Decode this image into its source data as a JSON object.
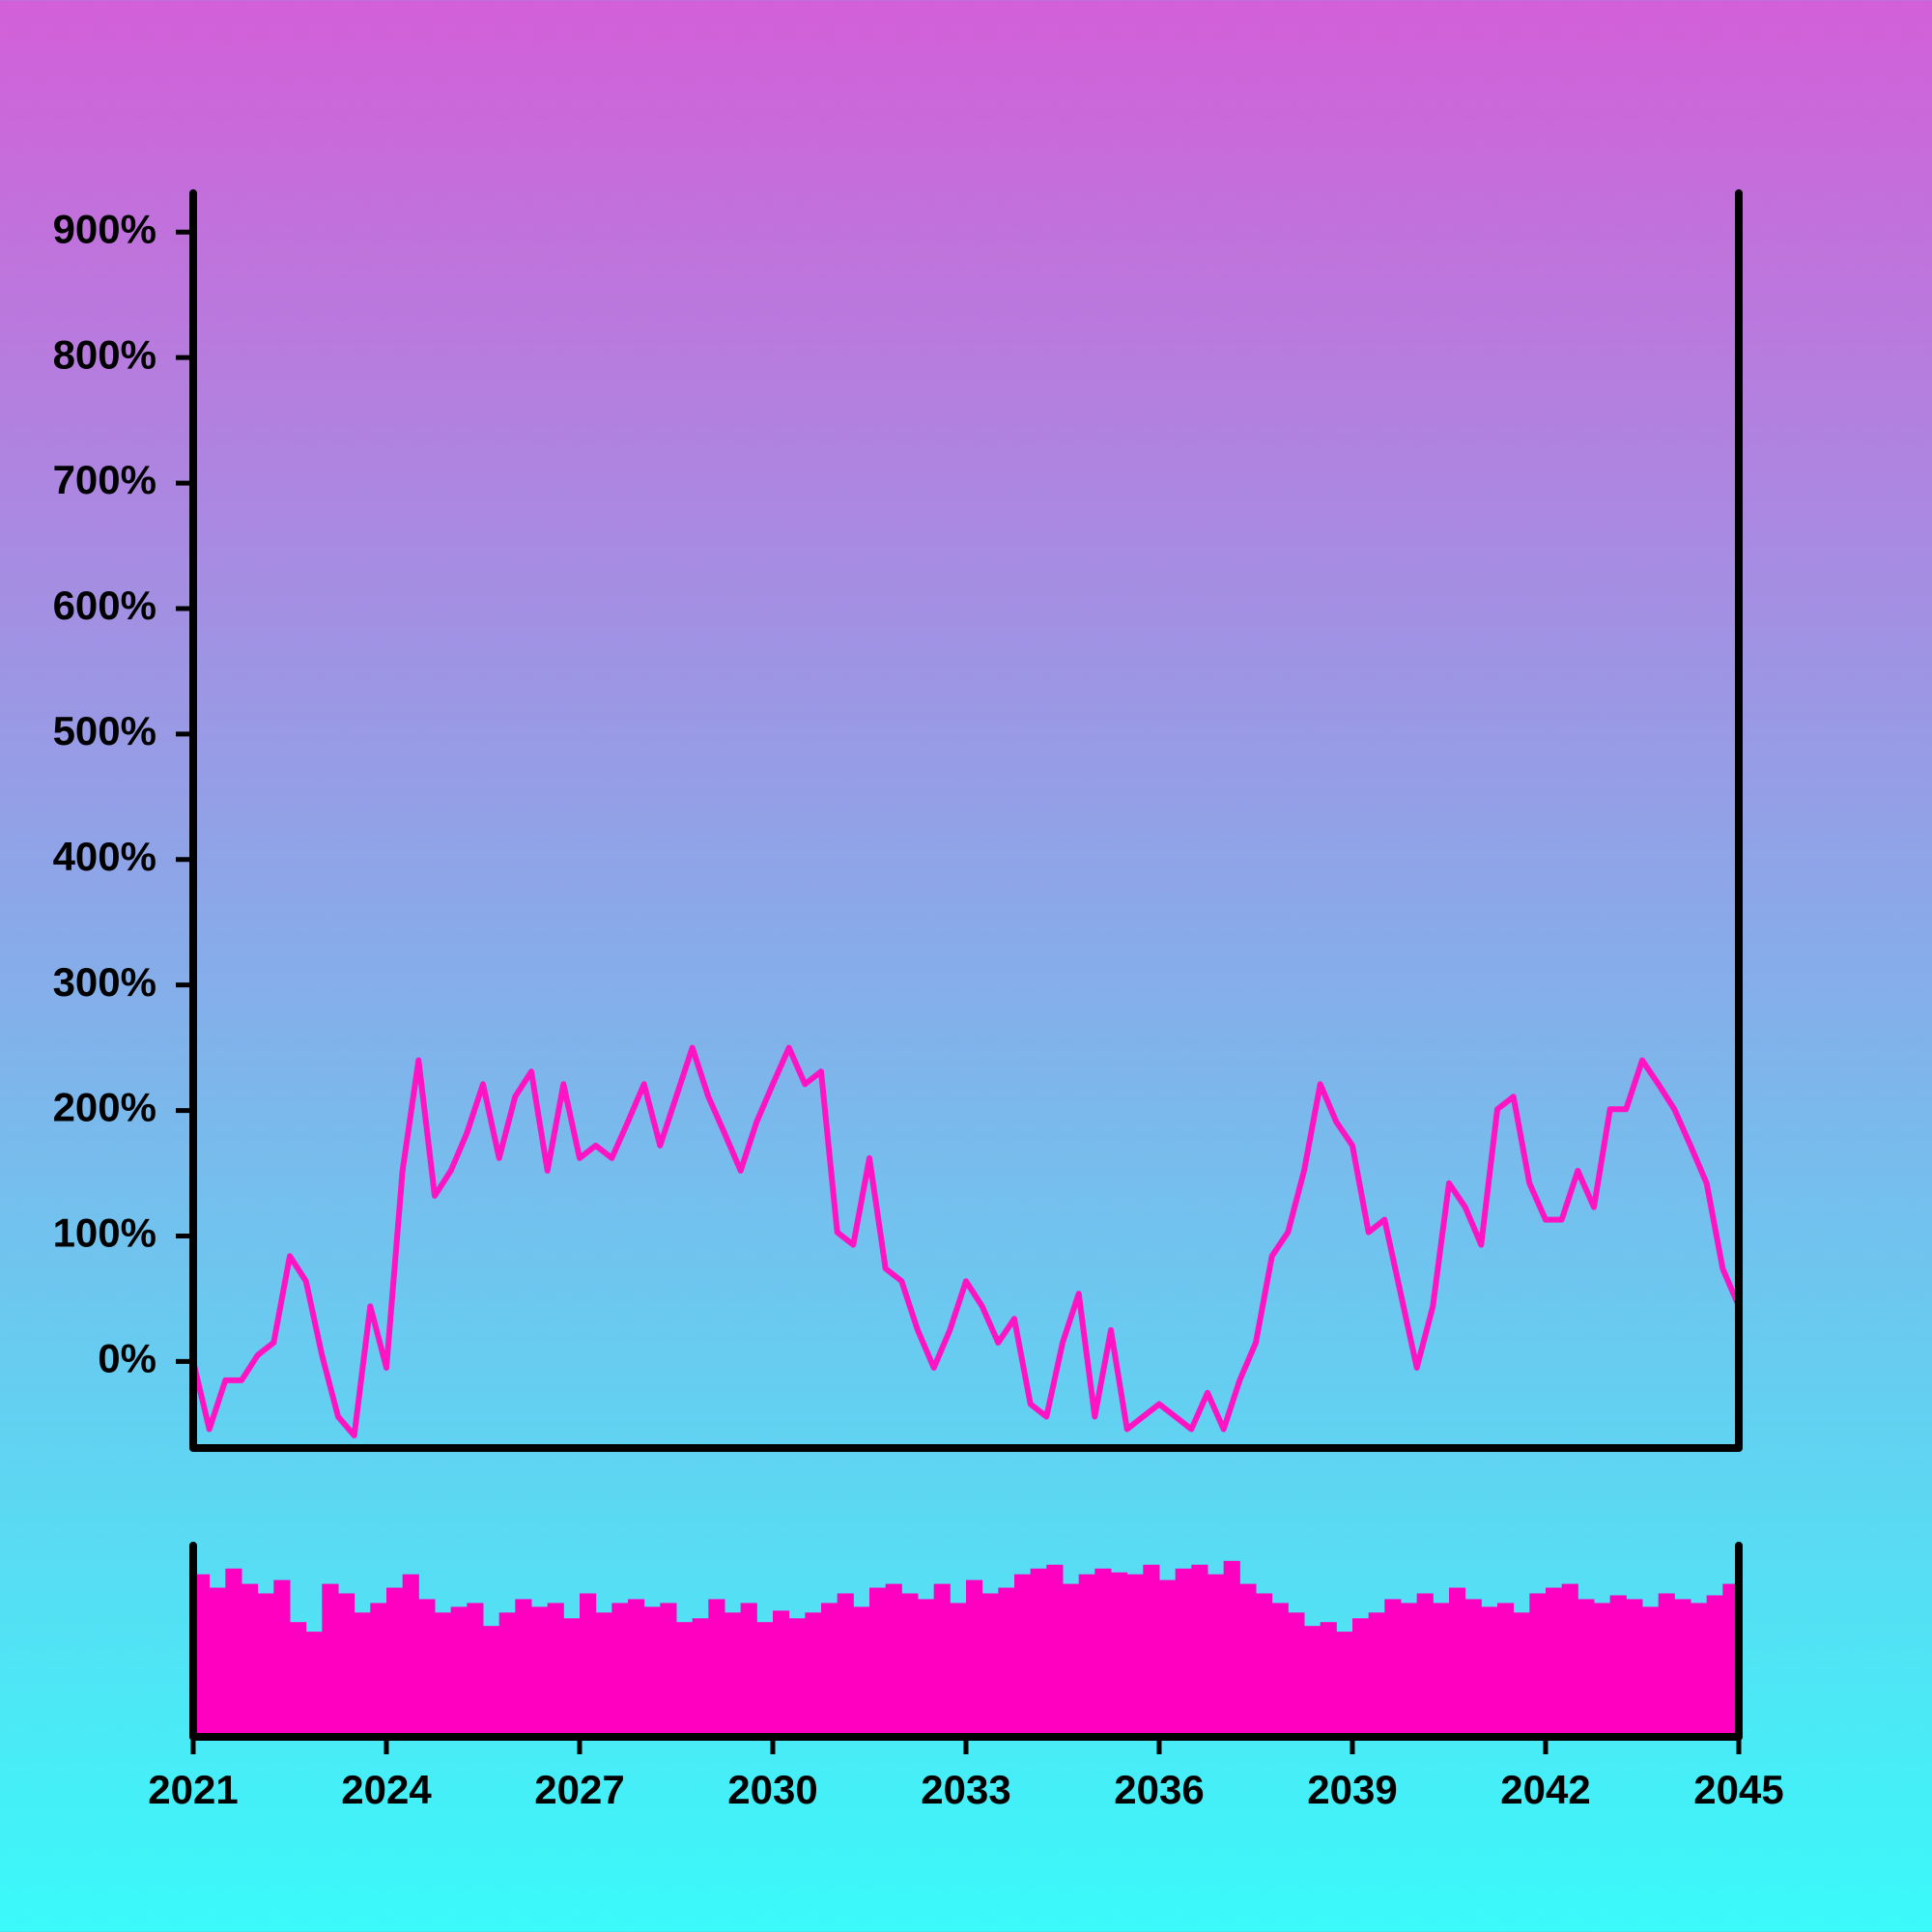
{
  "chart_data": [
    {
      "type": "line",
      "color": "#ff14c4",
      "x": [
        2021,
        2021.25,
        2021.5,
        2021.75,
        2022,
        2022.25,
        2022.5,
        2022.75,
        2023,
        2023.25,
        2023.5,
        2023.75,
        2024,
        2024.25,
        2024.5,
        2024.75,
        2025,
        2025.25,
        2025.5,
        2025.75,
        2026,
        2026.25,
        2026.5,
        2026.75,
        2027,
        2027.25,
        2027.5,
        2027.75,
        2028,
        2028.25,
        2028.5,
        2028.75,
        2029,
        2029.25,
        2029.5,
        2029.75,
        2030,
        2030.25,
        2030.5,
        2030.75,
        2031,
        2031.25,
        2031.5,
        2031.75,
        2032,
        2032.25,
        2032.5,
        2032.75,
        2033,
        2033.25,
        2033.5,
        2033.75,
        2034,
        2034.25,
        2034.5,
        2034.75,
        2035,
        2035.25,
        2035.5,
        2035.75,
        2036,
        2036.25,
        2036.5,
        2036.75,
        2037,
        2037.25,
        2037.5,
        2037.75,
        2038,
        2038.25,
        2038.5,
        2038.75,
        2039,
        2039.25,
        2039.5,
        2039.75,
        2040,
        2040.25,
        2040.5,
        2040.75,
        2041,
        2041.25,
        2041.5,
        2041.75,
        2042,
        2042.25,
        2042.5,
        2042.75,
        2043,
        2043.25,
        2043.5,
        2043.75,
        2044,
        2044.25,
        2044.5,
        2044.75,
        2045
      ],
      "values": [
        0,
        -54,
        -15,
        -15,
        5,
        15,
        84,
        64,
        5,
        -44,
        -59,
        44,
        -5,
        152,
        240,
        132,
        152,
        182,
        221,
        162,
        211,
        231,
        152,
        221,
        162,
        172,
        162,
        191,
        221,
        172,
        211,
        250,
        211,
        182,
        152,
        191,
        221,
        250,
        221,
        231,
        103,
        93,
        162,
        74,
        64,
        25,
        -5,
        25,
        64,
        44,
        15,
        34,
        -34,
        -44,
        15,
        54,
        -44,
        25,
        -54,
        -44,
        -34,
        -44,
        -54,
        -25,
        -54,
        -15,
        15,
        84,
        103,
        152,
        221,
        191,
        172,
        103,
        113,
        54,
        -5,
        44,
        142,
        123,
        93,
        201,
        211,
        142,
        113,
        113,
        152,
        123,
        201,
        201,
        240,
        221,
        201,
        172,
        142,
        74,
        44
      ],
      "xlim": [
        2021,
        2045
      ],
      "ylim": [
        -69,
        931
      ],
      "yticks": [
        {
          "value": 0,
          "label": "0%"
        },
        {
          "value": 100,
          "label": "100%"
        },
        {
          "value": 200,
          "label": "200%"
        },
        {
          "value": 300,
          "label": "300%"
        },
        {
          "value": 400,
          "label": "400%"
        },
        {
          "value": 500,
          "label": "500%"
        },
        {
          "value": 600,
          "label": "600%"
        },
        {
          "value": 700,
          "label": "700%"
        },
        {
          "value": 800,
          "label": "800%"
        },
        {
          "value": 900,
          "label": "900%"
        }
      ]
    },
    {
      "type": "bar",
      "color": "#ff00c0",
      "x": [
        2021,
        2021.25,
        2021.5,
        2021.75,
        2022,
        2022.25,
        2022.5,
        2022.75,
        2023,
        2023.25,
        2023.5,
        2023.75,
        2024,
        2024.25,
        2024.5,
        2024.75,
        2025,
        2025.25,
        2025.5,
        2025.75,
        2026,
        2026.25,
        2026.5,
        2026.75,
        2027,
        2027.25,
        2027.5,
        2027.75,
        2028,
        2028.25,
        2028.5,
        2028.75,
        2029,
        2029.25,
        2029.5,
        2029.75,
        2030,
        2030.25,
        2030.5,
        2030.75,
        2031,
        2031.25,
        2031.5,
        2031.75,
        2032,
        2032.25,
        2032.5,
        2032.75,
        2033,
        2033.25,
        2033.5,
        2033.75,
        2034,
        2034.25,
        2034.5,
        2034.75,
        2035,
        2035.25,
        2035.5,
        2035.75,
        2036,
        2036.25,
        2036.5,
        2036.75,
        2037,
        2037.25,
        2037.5,
        2037.75,
        2038,
        2038.25,
        2038.5,
        2038.75,
        2039,
        2039.25,
        2039.5,
        2039.75,
        2040,
        2040.25,
        2040.5,
        2040.75,
        2041,
        2041.25,
        2041.5,
        2041.75,
        2042,
        2042.25,
        2042.5,
        2042.75,
        2043,
        2043.25,
        2043.5,
        2043.75,
        2044,
        2044.25,
        2044.5,
        2044.75
      ],
      "values": [
        85,
        78,
        88,
        80,
        75,
        82,
        60,
        55,
        80,
        75,
        65,
        70,
        78,
        85,
        72,
        65,
        68,
        70,
        58,
        65,
        72,
        68,
        70,
        62,
        75,
        65,
        70,
        72,
        68,
        70,
        60,
        62,
        72,
        65,
        70,
        60,
        66,
        62,
        65,
        70,
        75,
        68,
        78,
        80,
        75,
        72,
        80,
        70,
        82,
        75,
        78,
        85,
        88,
        90,
        80,
        85,
        88,
        86,
        85,
        90,
        82,
        88,
        90,
        85,
        92,
        80,
        75,
        70,
        65,
        58,
        60,
        55,
        62,
        65,
        72,
        70,
        75,
        70,
        78,
        72,
        68,
        70,
        65,
        75,
        78,
        80,
        72,
        70,
        74,
        72,
        68,
        75,
        72,
        70,
        74,
        80
      ],
      "xlim": [
        2021,
        2045
      ],
      "ylim": [
        0,
        100
      ],
      "xticks": [
        2021,
        2024,
        2027,
        2030,
        2033,
        2036,
        2039,
        2042,
        2045
      ]
    }
  ]
}
